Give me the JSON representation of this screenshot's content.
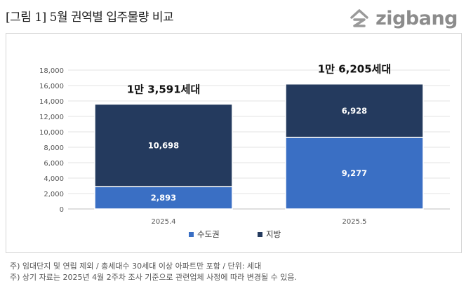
{
  "header": {
    "title": "[그림 1] 5월 권역별 입주물량 비교",
    "brand": "zigbang"
  },
  "chart_data": {
    "type": "bar",
    "stacked": true,
    "categories": [
      "2025.4",
      "2025.5"
    ],
    "series": [
      {
        "name": "수도권",
        "values": [
          2893,
          9277
        ],
        "labels": [
          "2,893",
          "9,277"
        ],
        "color": "#3a6fc4"
      },
      {
        "name": "지방",
        "values": [
          10698,
          6928
        ],
        "labels": [
          "10,698",
          "6,928"
        ],
        "color": "#243a5e"
      }
    ],
    "totals": [
      "1만 3,591세대",
      "1만 6,205세대"
    ],
    "ylim": [
      0,
      18000
    ],
    "yticks": [
      0,
      2000,
      4000,
      6000,
      8000,
      10000,
      12000,
      14000,
      16000,
      18000
    ],
    "ytick_labels": [
      "0",
      "2,000",
      "4,000",
      "6,000",
      "8,000",
      "10,000",
      "12,000",
      "14,000",
      "16,000",
      "18,000"
    ],
    "grid": true,
    "legend_position": "bottom"
  },
  "notes": [
    "주) 임대단지 및 연립 제외 / 총세대수 30세대 이상 아파트만 포함 / 단위: 세대",
    "주) 상기 자료는 2025년 4월 2주차 조사 기준으로 관련업체 사정에 따라 변경될 수 있음."
  ]
}
